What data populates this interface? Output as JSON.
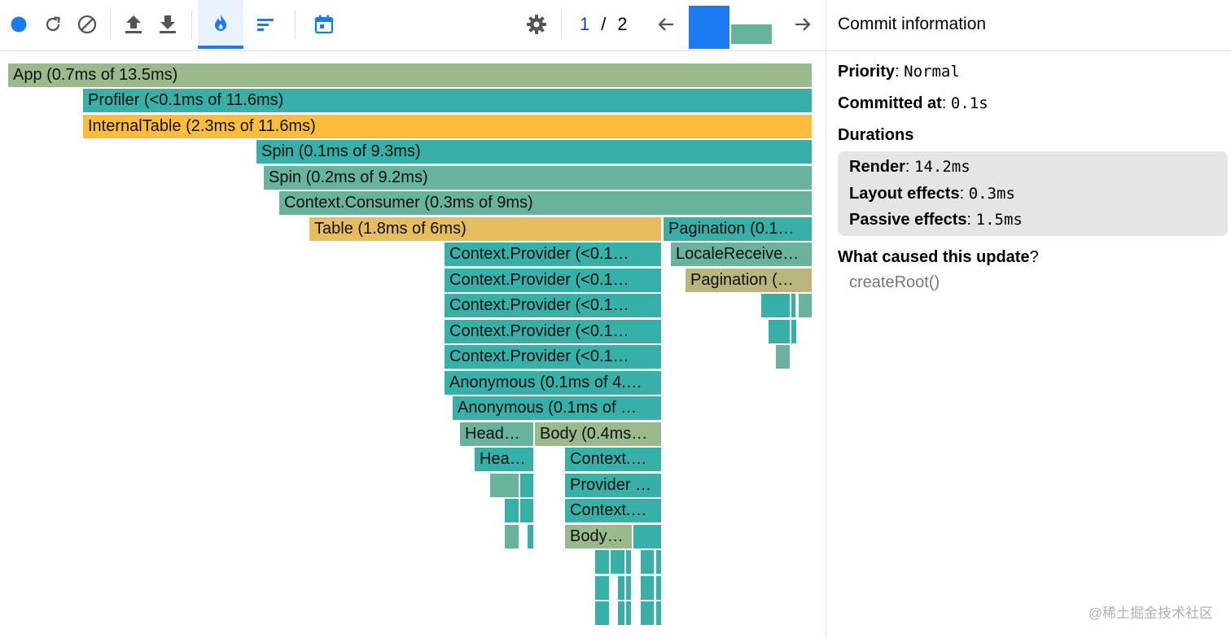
{
  "toolbar": {
    "icons": [
      "record-icon",
      "reload-icon",
      "clear-icon",
      "upload-icon",
      "download-icon",
      "flame-icon",
      "ranked-icon",
      "timeline-icon",
      "settings-icon",
      "arrow-left-icon",
      "arrow-right-icon"
    ],
    "accent_color": "#1a7bf0",
    "commit_current": "1",
    "commit_sep": "/",
    "commit_total": "2"
  },
  "flamegraph": {
    "colors": {
      "teal": "#37b0a8",
      "green": "#9bba8b",
      "orange": "#fbbd3a",
      "gold": "#e5bd5c",
      "olive": "#b8b67c",
      "mint": "#67b39d"
    },
    "nodes": [
      {
        "label": "App (0.7ms of 13.5ms)",
        "color": "#9bba8b"
      },
      {
        "label": "Profiler (<0.1ms of 11.6ms)",
        "color": "#37b0a8"
      },
      {
        "label": "InternalTable (2.3ms of 11.6ms)",
        "color": "#fbbd3a"
      },
      {
        "label": "Spin (0.1ms of 9.3ms)",
        "color": "#37b0a8"
      },
      {
        "label": "Spin (0.2ms of 9.2ms)",
        "color": "#67b39d"
      },
      {
        "label": "Context.Consumer (0.3ms of 9ms)",
        "color": "#67b39d"
      },
      {
        "label": "Table (1.8ms of 6ms)",
        "color": "#e5bd5c"
      },
      {
        "label": "Pagination (0.1…",
        "color": "#37b0a8"
      },
      {
        "label": "Context.Provider (<0.1…",
        "color": "#37b0a8"
      },
      {
        "label": "LocaleReceive…",
        "color": "#67b39d"
      },
      {
        "label": "Context.Provider (<0.1…",
        "color": "#37b0a8"
      },
      {
        "label": "Pagination (…",
        "color": "#b8b67c"
      },
      {
        "label": "Context.Provider (<0.1…",
        "color": "#37b0a8"
      },
      {
        "label": "Context.Provider (<0.1…",
        "color": "#37b0a8"
      },
      {
        "label": "Context.Provider (<0.1…",
        "color": "#37b0a8"
      },
      {
        "label": "Anonymous (0.1ms of 4.…",
        "color": "#37b0a8"
      },
      {
        "label": "Anonymous (0.1ms of …",
        "color": "#37b0a8"
      },
      {
        "label": "Head…",
        "color": "#67b39d"
      },
      {
        "label": "Body (0.4ms…",
        "color": "#9bba8b"
      },
      {
        "label": "Hea…",
        "color": "#37b0a8"
      },
      {
        "label": "Context.…",
        "color": "#37b0a8"
      },
      {
        "label": "Provider …",
        "color": "#37b0a8"
      },
      {
        "label": "Context.…",
        "color": "#37b0a8"
      },
      {
        "label": "Body…",
        "color": "#9bba8b"
      }
    ]
  },
  "panel": {
    "title": "Commit information",
    "priority_label": "Priority",
    "priority_value": "Normal",
    "committed_label": "Committed at",
    "committed_value": "0.1s",
    "durations_label": "Durations",
    "render_label": "Render",
    "render_value": "14.2ms",
    "layout_label": "Layout effects",
    "layout_value": "0.3ms",
    "passive_label": "Passive effects",
    "passive_value": "1.5ms",
    "cause_label": "What caused this update",
    "cause_q": "?",
    "cause_value": "createRoot()"
  },
  "watermark": "@稀土掘金技术社区"
}
